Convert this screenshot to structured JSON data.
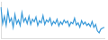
{
  "chart_data": {
    "type": "line",
    "color": "#3a9ad9",
    "grid": false,
    "tick_labels": false,
    "categories": [
      null,
      null,
      null,
      null,
      null,
      null,
      null,
      null,
      null,
      null,
      null,
      null,
      null,
      null,
      null,
      null,
      null,
      null,
      null,
      null,
      null,
      null,
      null,
      null,
      null,
      null,
      null,
      null,
      null,
      null,
      null,
      null,
      null,
      null,
      null,
      null,
      null,
      null,
      null,
      null,
      null,
      null,
      null,
      null,
      null,
      null,
      null,
      null,
      null,
      null,
      null,
      null,
      null,
      null,
      null,
      null,
      null,
      null,
      null,
      null
    ],
    "values": [
      85,
      40,
      60,
      35,
      75,
      45,
      55,
      30,
      65,
      40,
      50,
      35,
      70,
      45,
      55,
      40,
      60,
      38,
      52,
      45,
      58,
      35,
      48,
      42,
      62,
      38,
      50,
      44,
      55,
      36,
      46,
      40,
      52,
      34,
      45,
      38,
      50,
      42,
      47,
      33,
      44,
      40,
      55,
      36,
      42,
      30,
      48,
      38,
      44,
      35,
      40,
      32,
      46,
      30,
      38,
      20,
      15,
      25,
      28,
      30
    ],
    "ylim": [
      0,
      100
    ]
  }
}
